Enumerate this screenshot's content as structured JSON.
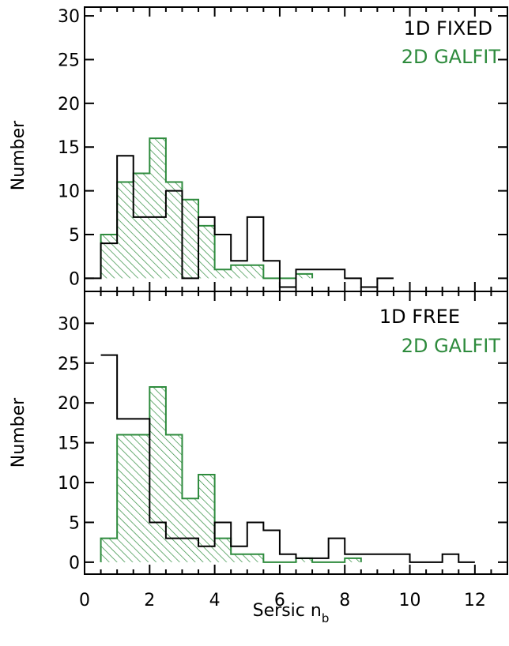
{
  "chart_data": [
    {
      "type": "histogram",
      "panel": "top",
      "ylabel": "Number",
      "xlim": [
        0,
        13
      ],
      "ylim": [
        -1.5,
        31
      ],
      "yticks": [
        0,
        5,
        10,
        15,
        20,
        25,
        30
      ],
      "bin_width": 0.5,
      "legend_placement": "top-right",
      "series": [
        {
          "name": "1D FIXED",
          "color": "#000000",
          "style": "step",
          "bins": [
            {
              "x0": 0.0,
              "value": 0
            },
            {
              "x0": 0.5,
              "value": 4
            },
            {
              "x0": 1.0,
              "value": 14
            },
            {
              "x0": 1.5,
              "value": 7
            },
            {
              "x0": 2.0,
              "value": 7
            },
            {
              "x0": 2.5,
              "value": 10
            },
            {
              "x0": 3.0,
              "value": 0
            },
            {
              "x0": 3.5,
              "value": 7
            },
            {
              "x0": 4.0,
              "value": 5
            },
            {
              "x0": 4.5,
              "value": 2
            },
            {
              "x0": 5.0,
              "value": 7
            },
            {
              "x0": 5.5,
              "value": 2
            },
            {
              "x0": 6.0,
              "value": -1
            },
            {
              "x0": 6.5,
              "value": 1
            },
            {
              "x0": 7.0,
              "value": 1
            },
            {
              "x0": 7.5,
              "value": 1
            },
            {
              "x0": 8.0,
              "value": 0
            },
            {
              "x0": 8.5,
              "value": -1
            },
            {
              "x0": 9.0,
              "value": 0
            }
          ]
        },
        {
          "name": "2D GALFIT",
          "color": "#2e8b3d",
          "style": "hatched",
          "bins": [
            {
              "x0": 0.5,
              "value": 5
            },
            {
              "x0": 1.0,
              "value": 11
            },
            {
              "x0": 1.5,
              "value": 12
            },
            {
              "x0": 2.0,
              "value": 16
            },
            {
              "x0": 2.5,
              "value": 11
            },
            {
              "x0": 3.0,
              "value": 9
            },
            {
              "x0": 3.5,
              "value": 6
            },
            {
              "x0": 4.0,
              "value": 1
            },
            {
              "x0": 4.5,
              "value": 1.5
            },
            {
              "x0": 5.0,
              "value": 1.5
            },
            {
              "x0": 6.5,
              "value": 0.5
            }
          ]
        }
      ]
    },
    {
      "type": "histogram",
      "panel": "bottom",
      "ylabel": "Number",
      "xlabel": "Sersic n",
      "xlabel_sub": "b",
      "xlim": [
        0,
        13
      ],
      "ylim": [
        -1.5,
        34
      ],
      "xticks": [
        0,
        2,
        4,
        6,
        8,
        10,
        12
      ],
      "yticks": [
        0,
        5,
        10,
        15,
        20,
        25,
        30
      ],
      "bin_width": 0.5,
      "legend_placement": "top-right",
      "series": [
        {
          "name": "1D FREE",
          "color": "#000000",
          "style": "step",
          "bins": [
            {
              "x0": 0.5,
              "value": 26
            },
            {
              "x0": 1.0,
              "value": 18
            },
            {
              "x0": 1.5,
              "value": 18
            },
            {
              "x0": 2.0,
              "value": 5
            },
            {
              "x0": 2.5,
              "value": 3
            },
            {
              "x0": 3.0,
              "value": 3
            },
            {
              "x0": 3.5,
              "value": 2
            },
            {
              "x0": 4.0,
              "value": 5
            },
            {
              "x0": 4.5,
              "value": 2
            },
            {
              "x0": 5.0,
              "value": 5
            },
            {
              "x0": 5.5,
              "value": 4
            },
            {
              "x0": 6.0,
              "value": 1
            },
            {
              "x0": 6.5,
              "value": 0.5
            },
            {
              "x0": 7.0,
              "value": 0.5
            },
            {
              "x0": 7.5,
              "value": 3
            },
            {
              "x0": 8.0,
              "value": 1
            },
            {
              "x0": 8.5,
              "value": 1
            },
            {
              "x0": 9.0,
              "value": 1
            },
            {
              "x0": 9.5,
              "value": 1
            },
            {
              "x0": 10.0,
              "value": 0
            },
            {
              "x0": 10.5,
              "value": 0
            },
            {
              "x0": 11.0,
              "value": 1
            },
            {
              "x0": 11.5,
              "value": 0
            }
          ]
        },
        {
          "name": "2D GALFIT",
          "color": "#2e8b3d",
          "style": "hatched",
          "bins": [
            {
              "x0": 0.5,
              "value": 3
            },
            {
              "x0": 1.0,
              "value": 16
            },
            {
              "x0": 1.5,
              "value": 16
            },
            {
              "x0": 2.0,
              "value": 22
            },
            {
              "x0": 2.5,
              "value": 16
            },
            {
              "x0": 3.0,
              "value": 8
            },
            {
              "x0": 3.5,
              "value": 11
            },
            {
              "x0": 4.0,
              "value": 3
            },
            {
              "x0": 4.5,
              "value": 1
            },
            {
              "x0": 5.0,
              "value": 1
            },
            {
              "x0": 5.5,
              "value": 0
            },
            {
              "x0": 6.0,
              "value": 0
            },
            {
              "x0": 6.5,
              "value": 0.5
            },
            {
              "x0": 7.0,
              "value": 0
            },
            {
              "x0": 7.5,
              "value": 0
            },
            {
              "x0": 8.0,
              "value": 0.5
            }
          ]
        }
      ]
    }
  ]
}
